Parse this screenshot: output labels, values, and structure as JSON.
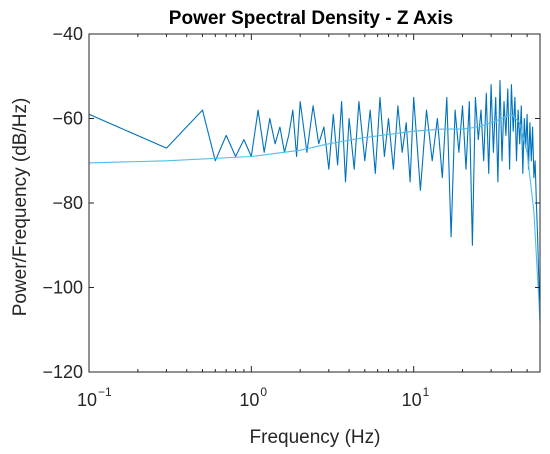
{
  "chart_data": {
    "type": "line",
    "title": "Power Spectral Density - Z Axis",
    "xlabel": "Frequency (Hz)",
    "ylabel": "Power/Frequency (dB/Hz)",
    "xscale": "log",
    "xlim": [
      0.1,
      60
    ],
    "ylim": [
      -120,
      -40
    ],
    "grid": false,
    "x_ticks": [
      {
        "value": 0.1,
        "base": "10",
        "exp": "−1"
      },
      {
        "value": 1,
        "base": "10",
        "exp": "0"
      },
      {
        "value": 10,
        "base": "10",
        "exp": "1"
      }
    ],
    "y_ticks": [
      {
        "value": -40,
        "label": "−40"
      },
      {
        "value": -60,
        "label": "−60"
      },
      {
        "value": -80,
        "label": "−80"
      },
      {
        "value": -100,
        "label": "−100"
      },
      {
        "value": -120,
        "label": "−120"
      }
    ],
    "series": [
      {
        "color": "#0072BD",
        "x": [
          0.1,
          0.3,
          0.5,
          0.6,
          0.7,
          0.8,
          0.9,
          1.0,
          1.1,
          1.2,
          1.3,
          1.4,
          1.5,
          1.6,
          1.7,
          1.8,
          1.9,
          2.0,
          2.2,
          2.4,
          2.6,
          2.8,
          3.0,
          3.2,
          3.4,
          3.6,
          3.8,
          4.0,
          4.3,
          4.6,
          5.0,
          5.4,
          5.8,
          6.2,
          6.6,
          7.0,
          7.5,
          8.0,
          8.5,
          9.0,
          9.5,
          10,
          11,
          12,
          13,
          14,
          15,
          16,
          17,
          18,
          19,
          20,
          21,
          22,
          23,
          24,
          25,
          26,
          27,
          28,
          29,
          30,
          31,
          32,
          33,
          34,
          35,
          36,
          37,
          38,
          39,
          40,
          41,
          42,
          43,
          44,
          45,
          46,
          47,
          48,
          49,
          50,
          51,
          52,
          53,
          54,
          55,
          56,
          57,
          58,
          59,
          60
        ],
        "y": [
          -59,
          -67,
          -58,
          -70,
          -64,
          -69,
          -65,
          -69,
          -58,
          -68,
          -60,
          -66,
          -62,
          -68,
          -64,
          -58,
          -69,
          -56,
          -68,
          -57,
          -66,
          -62,
          -72,
          -59,
          -71,
          -56,
          -75,
          -60,
          -72,
          -56,
          -70,
          -58,
          -73,
          -55,
          -69,
          -60,
          -72,
          -57,
          -68,
          -61,
          -75,
          -55,
          -77,
          -58,
          -70,
          -60,
          -74,
          -55,
          -88,
          -58,
          -68,
          -57,
          -72,
          -56,
          -90,
          -55,
          -65,
          -58,
          -70,
          -54,
          -73,
          -52,
          -68,
          -55,
          -75,
          -51,
          -70,
          -56,
          -64,
          -53,
          -72,
          -52,
          -63,
          -55,
          -70,
          -58,
          -66,
          -57,
          -73,
          -60,
          -67,
          -59,
          -72,
          -61,
          -70,
          -62,
          -74,
          -70,
          -80,
          -88,
          -98,
          -108
        ]
      },
      {
        "color": "#4DBEEE",
        "x": [
          0.1,
          0.3,
          1,
          2,
          3,
          5,
          10,
          15,
          20,
          25,
          30,
          35,
          40,
          45,
          50,
          55,
          60
        ],
        "y": [
          -70.5,
          -70,
          -69,
          -67.5,
          -66,
          -64.5,
          -63,
          -62.5,
          -62.5,
          -62,
          -61,
          -60,
          -59,
          -61,
          -68,
          -82,
          -108
        ]
      }
    ]
  }
}
